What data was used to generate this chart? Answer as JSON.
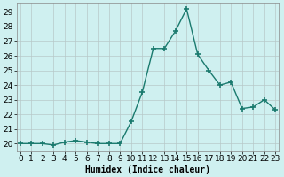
{
  "x": [
    0,
    1,
    2,
    3,
    4,
    5,
    6,
    7,
    8,
    9,
    10,
    11,
    12,
    13,
    14,
    15,
    16,
    17,
    18,
    19,
    20,
    21,
    22,
    23
  ],
  "y": [
    20.0,
    20.0,
    20.0,
    19.9,
    20.1,
    20.2,
    20.1,
    20.0,
    20.0,
    20.0,
    21.5,
    23.5,
    26.5,
    26.5,
    27.7,
    29.2,
    26.1,
    25.0,
    24.0,
    24.2,
    22.4,
    22.5,
    23.0,
    22.3
  ],
  "line_color": "#1a7a6e",
  "marker": "+",
  "markersize": 4,
  "markeredgewidth": 1.2,
  "linewidth": 1.0,
  "bg_color": "#cff0f0",
  "grid_color": "#b8c8c8",
  "xlabel": "Humidex (Indice chaleur)",
  "xlabel_fontsize": 7,
  "tick_fontsize": 6.5,
  "ylim": [
    19.5,
    29.6
  ],
  "yticks": [
    20,
    21,
    22,
    23,
    24,
    25,
    26,
    27,
    28,
    29
  ],
  "xticks": [
    0,
    1,
    2,
    3,
    4,
    5,
    6,
    7,
    8,
    9,
    10,
    11,
    12,
    13,
    14,
    15,
    16,
    17,
    18,
    19,
    20,
    21,
    22,
    23
  ],
  "xlim": [
    -0.3,
    23.3
  ]
}
